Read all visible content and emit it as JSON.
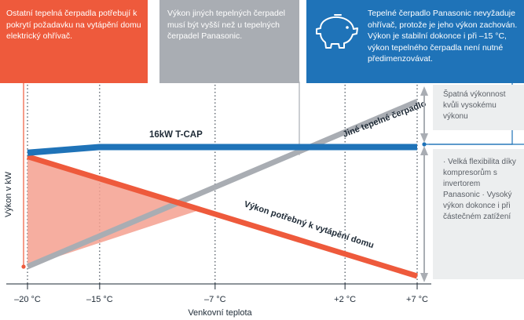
{
  "callouts": {
    "red": "Ostatní tepelná čerpadla potřebují k pokrytí požadavku na vytápění domu elektrický ohřívač.",
    "gray": "Výkon jiných tepelných čerpadel musí být vyšší než u tepelných čerpadel Panasonic.",
    "blue": "Tepelné čerpadlo Panasonic nevyžaduje ohřívač, protože je jeho výkon zachován. Výkon je stabilní dokonce i při –15 °C, výkon tepelného čerpadla není nutné předimenzovávat."
  },
  "notes": {
    "top": "Špatná výkonnost kvůli vysokému výkonu",
    "bottom": "· Velká flexibilita díky kompresorům s invertorem Panasonic · Vysoký výkon dokonce i při částečném zatížení"
  },
  "colors": {
    "red": "#ee5a3c",
    "gray": "#a9adb3",
    "blue": "#1f73b8",
    "red_fill": "#f4a08f"
  },
  "chart_data": {
    "type": "line",
    "xlabel": "Venkovní teplota",
    "ylabel": "Výkon v kW",
    "x_ticks": [
      -20,
      -15,
      -7,
      2,
      7
    ],
    "x_tick_labels": [
      "–20 °C",
      "–15 °C",
      "–7 °C",
      "+2 °C",
      "+7 °C"
    ],
    "xlim": [
      -20,
      7
    ],
    "ylim": [
      0,
      100
    ],
    "y_axis_values_printed": false,
    "grid": "vertical-dotted",
    "series": [
      {
        "name": "16kW T-CAP",
        "color": "#1f73b8",
        "x": [
          -20,
          -15,
          7
        ],
        "y": [
          65,
          68,
          68
        ]
      },
      {
        "name": "Jiné tepelné čerpadlo",
        "color": "#a9adb3",
        "x": [
          -20,
          7
        ],
        "y": [
          5,
          92
        ]
      },
      {
        "name": "Výkon potřebný k vytápění domu",
        "color": "#ee5a3c",
        "x": [
          -20,
          7
        ],
        "y": [
          63,
          0
        ]
      }
    ],
    "shaded_region": {
      "color": "#f4a08f",
      "between": [
        "Výkon potřebný k vytápění domu",
        "Jiné tepelné čerpadlo"
      ],
      "x_range": [
        -20,
        -8
      ]
    }
  }
}
